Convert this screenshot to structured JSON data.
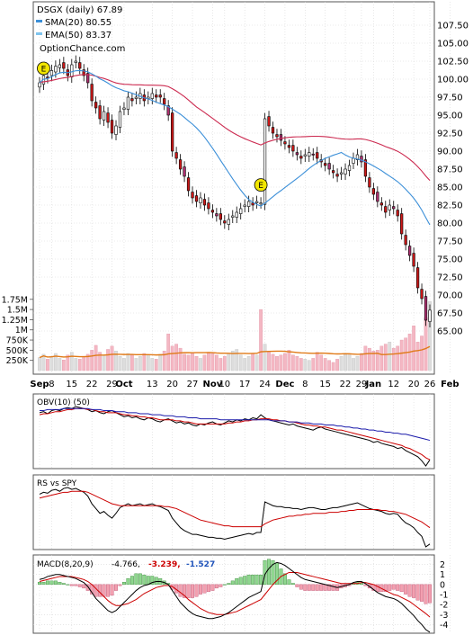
{
  "chart_data": [
    {
      "type": "candlestick",
      "title": "DSGX (daily) 67.89",
      "watermark": "OptionChance.com",
      "legend": [
        {
          "label": "SMA(20) 80.55",
          "color": "#3b8fd8"
        },
        {
          "label": "EMA(50) 83.37",
          "color": "#7fc4ee"
        }
      ],
      "ylim": [
        62,
        110
      ],
      "ytick_labels": [
        "107.50",
        "105.00",
        "102.50",
        "100.00",
        "97.50",
        "95.00",
        "92.50",
        "90.00",
        "87.50",
        "85.00",
        "82.50",
        "80.00",
        "77.50",
        "75.00",
        "72.50",
        "70.00",
        "67.50",
        "65.00"
      ],
      "ytick_values": [
        107.5,
        105,
        102.5,
        100,
        97.5,
        95,
        92.5,
        90,
        87.5,
        85,
        82.5,
        80,
        77.5,
        75,
        72.5,
        70,
        67.5,
        65
      ],
      "x_labels": [
        {
          "label": "Sep",
          "day": 0,
          "bold": true
        },
        {
          "label": "8",
          "day": 3
        },
        {
          "label": "15",
          "day": 8
        },
        {
          "label": "22",
          "day": 13
        },
        {
          "label": "29",
          "day": 18
        },
        {
          "label": "Oct",
          "day": 21,
          "bold": true
        },
        {
          "label": "13",
          "day": 28
        },
        {
          "label": "20",
          "day": 33
        },
        {
          "label": "27",
          "day": 38
        },
        {
          "label": "Nov",
          "day": 43,
          "bold": true
        },
        {
          "label": "10",
          "day": 46
        },
        {
          "label": "17",
          "day": 51
        },
        {
          "label": "24",
          "day": 56
        },
        {
          "label": "Dec",
          "day": 61,
          "bold": true
        },
        {
          "label": "8",
          "day": 66
        },
        {
          "label": "15",
          "day": 71
        },
        {
          "label": "22",
          "day": 76
        },
        {
          "label": "29",
          "day": 80
        },
        {
          "label": "Jan",
          "day": 83,
          "bold": true
        },
        {
          "label": "12",
          "day": 88
        },
        {
          "label": "20",
          "day": 93
        },
        {
          "label": "26",
          "day": 97
        },
        {
          "label": "Feb",
          "day": 102,
          "bold": true
        }
      ],
      "close": [
        99.5,
        100.5,
        100.2,
        101.2,
        101.8,
        102.0,
        101.5,
        100.5,
        102.0,
        102.5,
        101.5,
        100.5,
        99.5,
        97.0,
        96.0,
        94.5,
        95.5,
        94.0,
        92.5,
        93.5,
        95.5,
        96.0,
        97.5,
        97.0,
        97.5,
        98.0,
        97.0,
        97.5,
        98.0,
        97.5,
        97.5,
        96.5,
        95.0,
        90.0,
        89.0,
        87.5,
        86.5,
        84.5,
        83.5,
        83.0,
        83.5,
        82.5,
        82.0,
        81.5,
        81.0,
        80.5,
        80.0,
        80.5,
        81.0,
        81.5,
        82.0,
        82.5,
        83.0,
        82.5,
        83.0,
        82.8,
        94.5,
        93.5,
        92.5,
        92.0,
        91.5,
        91.0,
        90.5,
        90.0,
        89.5,
        89.0,
        89.5,
        89.8,
        89.5,
        89.0,
        88.5,
        88.0,
        87.5,
        87.0,
        86.5,
        87.0,
        87.5,
        88.0,
        89.0,
        89.5,
        88.5,
        86.5,
        85.0,
        84.0,
        83.0,
        82.5,
        81.5,
        82.5,
        82.0,
        81.0,
        78.5,
        77.0,
        75.5,
        74.0,
        71.0,
        69.5,
        66.5,
        67.89
      ],
      "markers": [
        {
          "label": "E",
          "day": 1,
          "price": 101.5
        },
        {
          "label": "E",
          "day": 55,
          "price": 85.3
        }
      ],
      "volume_ticks": [
        "1.75M",
        "1.5M",
        "1.25M",
        "1M",
        "750K",
        "500K",
        "250K"
      ],
      "volume_tick_values": [
        1750,
        1500,
        1250,
        1000,
        750,
        500,
        250
      ],
      "volume_k": [
        320,
        400,
        280,
        350,
        420,
        300,
        260,
        380,
        450,
        300,
        280,
        350,
        400,
        500,
        620,
        450,
        380,
        520,
        600,
        480,
        350,
        300,
        420,
        380,
        300,
        350,
        420,
        380,
        300,
        280,
        400,
        480,
        900,
        600,
        650,
        550,
        400,
        380,
        420,
        350,
        300,
        380,
        450,
        420,
        380,
        300,
        350,
        420,
        480,
        520,
        380,
        300,
        350,
        420,
        380,
        1500,
        650,
        450,
        400,
        350,
        380,
        420,
        500,
        380,
        350,
        300,
        280,
        250,
        300,
        450,
        380,
        300,
        250,
        200,
        280,
        350,
        420,
        380,
        300,
        350,
        420,
        600,
        550,
        480,
        500,
        600,
        650,
        700,
        550,
        600,
        750,
        800,
        900,
        1100,
        700,
        850,
        1300,
        1700
      ],
      "volume_ma_color": "#e07a18"
    },
    {
      "type": "line",
      "label": "OBV(10) (50)",
      "series": [
        {
          "color": "#000000",
          "values": [
            62,
            63,
            61,
            64,
            65,
            64,
            66,
            67,
            66,
            68,
            67,
            66,
            65,
            63,
            64,
            62,
            61,
            63,
            64,
            62,
            60,
            58,
            59,
            57,
            58,
            56,
            55,
            57,
            56,
            54,
            53,
            55,
            56,
            54,
            52,
            53,
            51,
            52,
            50,
            49,
            51,
            50,
            52,
            53,
            51,
            50,
            52,
            54,
            53,
            55,
            54,
            56,
            55,
            57,
            56,
            60,
            57,
            55,
            54,
            53,
            52,
            51,
            50,
            51,
            49,
            48,
            47,
            46,
            45,
            47,
            48,
            46,
            45,
            44,
            43,
            42,
            41,
            40,
            39,
            38,
            37,
            36,
            35,
            33,
            34,
            32,
            31,
            30,
            29,
            27,
            28,
            25,
            23,
            21,
            19,
            15,
            10,
            16
          ]
        },
        {
          "color": "#cc0000",
          "values": [
            60,
            61,
            61,
            62,
            63,
            63,
            64,
            65,
            65,
            66,
            66,
            66,
            65,
            65,
            64,
            63,
            63,
            62,
            62,
            62,
            61,
            60,
            60,
            59,
            59,
            58,
            58,
            57,
            57,
            56,
            55,
            55,
            55,
            55,
            54,
            54,
            53,
            53,
            52,
            51,
            51,
            51,
            51,
            51,
            51,
            51,
            51,
            52,
            52,
            53,
            53,
            54,
            54,
            55,
            55,
            56,
            56,
            56,
            55,
            55,
            54,
            54,
            53,
            53,
            52,
            51,
            50,
            50,
            49,
            49,
            48,
            48,
            47,
            46,
            45,
            45,
            44,
            43,
            42,
            41,
            40,
            39,
            38,
            37,
            36,
            35,
            34,
            33,
            32,
            31,
            30,
            28,
            27,
            25,
            23,
            21,
            18,
            16
          ]
        },
        {
          "color": "#1a1aaa",
          "values": [
            64,
            64,
            65,
            65,
            65,
            65,
            66,
            66,
            66,
            66,
            66,
            66,
            66,
            65,
            65,
            65,
            64,
            64,
            64,
            63,
            63,
            63,
            62,
            62,
            62,
            61,
            61,
            61,
            60,
            60,
            60,
            59,
            59,
            59,
            58,
            58,
            58,
            57,
            57,
            57,
            56,
            56,
            56,
            56,
            56,
            55,
            55,
            55,
            55,
            55,
            55,
            55,
            55,
            55,
            55,
            55,
            55,
            55,
            54,
            54,
            54,
            54,
            53,
            53,
            53,
            52,
            52,
            52,
            51,
            51,
            51,
            50,
            50,
            50,
            49,
            49,
            48,
            48,
            47,
            47,
            46,
            46,
            45,
            45,
            44,
            44,
            43,
            43,
            42,
            42,
            41,
            41,
            40,
            39,
            38,
            37,
            36,
            35
          ]
        }
      ]
    },
    {
      "type": "line",
      "label": "RS vs SPY",
      "series": [
        {
          "color": "#000000",
          "values": [
            70,
            72,
            71,
            74,
            75,
            73,
            76,
            77,
            75,
            76,
            74,
            72,
            68,
            60,
            55,
            50,
            52,
            48,
            45,
            50,
            56,
            58,
            60,
            58,
            59,
            60,
            58,
            59,
            60,
            58,
            57,
            55,
            53,
            45,
            40,
            35,
            32,
            30,
            28,
            28,
            27,
            26,
            25,
            25,
            24,
            24,
            23,
            24,
            25,
            26,
            27,
            28,
            29,
            28,
            30,
            30,
            62,
            60,
            58,
            57,
            57,
            56,
            56,
            55,
            55,
            54,
            55,
            56,
            56,
            55,
            54,
            54,
            55,
            56,
            56,
            57,
            58,
            59,
            60,
            61,
            59,
            57,
            55,
            54,
            53,
            52,
            50,
            49,
            50,
            49,
            44,
            40,
            38,
            35,
            30,
            26,
            15,
            18
          ]
        },
        {
          "color": "#cc0000",
          "values": [
            66,
            67,
            68,
            69,
            70,
            71,
            72,
            72,
            73,
            73,
            73,
            73,
            72,
            70,
            68,
            66,
            64,
            62,
            60,
            59,
            58,
            58,
            58,
            58,
            58,
            58,
            58,
            58,
            58,
            58,
            58,
            57,
            57,
            56,
            55,
            53,
            51,
            49,
            47,
            45,
            43,
            42,
            41,
            40,
            39,
            38,
            37,
            37,
            36,
            36,
            36,
            36,
            36,
            36,
            36,
            36,
            39,
            41,
            43,
            44,
            45,
            46,
            47,
            47,
            48,
            48,
            49,
            49,
            50,
            50,
            50,
            50,
            51,
            51,
            51,
            52,
            52,
            53,
            53,
            54,
            54,
            54,
            54,
            54,
            54,
            53,
            53,
            52,
            52,
            51,
            50,
            49,
            47,
            45,
            43,
            41,
            38,
            35
          ]
        }
      ]
    },
    {
      "type": "macd",
      "label": "MACD(8,20,9)",
      "values_text": [
        {
          "text": "-4.766,",
          "color": "#000000"
        },
        {
          "text": "-3.239,",
          "color": "#cc0000"
        },
        {
          "text": "-1.527",
          "color": "#2255bb"
        }
      ],
      "ylim": [
        -4.5,
        2.5
      ],
      "yticks": [
        "2",
        "1",
        "0",
        "-1",
        "-2",
        "-3",
        "-4"
      ],
      "ytick_values": [
        2,
        1,
        0,
        -1,
        -2,
        -3,
        -4
      ],
      "macd": [
        0.5,
        0.6,
        0.8,
        0.9,
        1.0,
        1.0,
        0.9,
        0.8,
        0.7,
        0.6,
        0.4,
        0.2,
        -0.2,
        -0.8,
        -1.4,
        -1.8,
        -2.2,
        -2.6,
        -2.8,
        -2.6,
        -2.2,
        -1.8,
        -1.4,
        -1.0,
        -0.6,
        -0.3,
        -0.1,
        0.0,
        0.2,
        0.3,
        0.3,
        0.2,
        0.0,
        -0.6,
        -1.2,
        -1.8,
        -2.2,
        -2.6,
        -2.9,
        -3.1,
        -3.2,
        -3.3,
        -3.4,
        -3.4,
        -3.3,
        -3.2,
        -3.0,
        -2.8,
        -2.5,
        -2.2,
        -1.9,
        -1.6,
        -1.3,
        -1.1,
        -0.9,
        -0.7,
        1.0,
        1.6,
        2.0,
        2.2,
        2.1,
        1.9,
        1.6,
        1.3,
        1.0,
        0.7,
        0.5,
        0.4,
        0.3,
        0.2,
        0.1,
        0.0,
        -0.1,
        -0.2,
        -0.3,
        -0.2,
        -0.1,
        0.0,
        0.2,
        0.3,
        0.3,
        0.1,
        -0.2,
        -0.5,
        -0.8,
        -1.0,
        -1.2,
        -1.3,
        -1.4,
        -1.6,
        -1.9,
        -2.3,
        -2.7,
        -3.1,
        -3.6,
        -4.0,
        -4.5,
        -4.766
      ],
      "signal": [
        0.3,
        0.4,
        0.5,
        0.6,
        0.7,
        0.8,
        0.8,
        0.8,
        0.8,
        0.7,
        0.6,
        0.5,
        0.3,
        0.0,
        -0.4,
        -0.8,
        -1.2,
        -1.6,
        -1.9,
        -2.1,
        -2.1,
        -2.0,
        -1.9,
        -1.7,
        -1.5,
        -1.2,
        -0.9,
        -0.7,
        -0.5,
        -0.3,
        -0.2,
        -0.1,
        -0.1,
        -0.2,
        -0.5,
        -0.8,
        -1.1,
        -1.5,
        -1.8,
        -2.1,
        -2.4,
        -2.6,
        -2.8,
        -2.9,
        -3.0,
        -3.0,
        -3.0,
        -2.9,
        -2.8,
        -2.7,
        -2.5,
        -2.3,
        -2.1,
        -1.9,
        -1.7,
        -1.5,
        -1.0,
        -0.5,
        0.0,
        0.4,
        0.8,
        1.0,
        1.2,
        1.2,
        1.2,
        1.1,
        1.0,
        0.9,
        0.8,
        0.7,
        0.6,
        0.5,
        0.4,
        0.3,
        0.2,
        0.1,
        0.1,
        0.1,
        0.1,
        0.1,
        0.2,
        0.2,
        0.1,
        0.0,
        -0.2,
        -0.4,
        -0.6,
        -0.8,
        -1.0,
        -1.1,
        -1.3,
        -1.5,
        -1.7,
        -2.0,
        -2.3,
        -2.6,
        -2.9,
        -3.239
      ]
    }
  ]
}
